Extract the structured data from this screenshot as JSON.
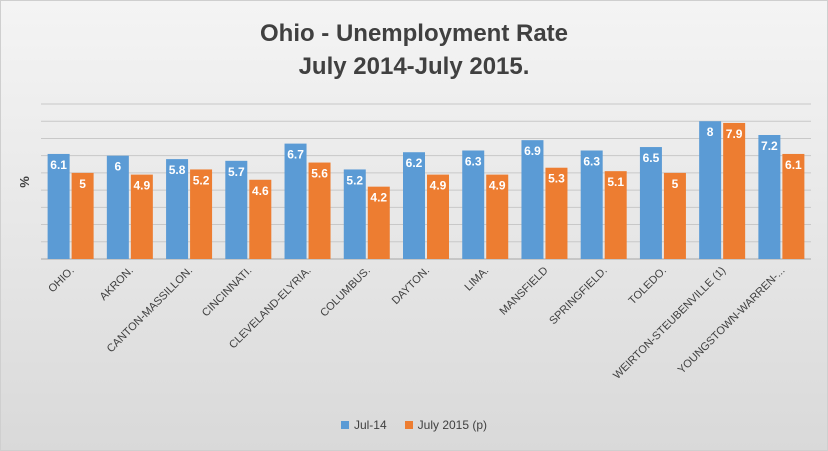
{
  "chart_data": {
    "type": "bar",
    "title": "Ohio - Unemployment Rate",
    "subtitle": "July 2014-July 2015.",
    "ylabel": "%",
    "xlabel": "",
    "ylim": [
      0,
      9
    ],
    "grid": true,
    "legend_position": "bottom",
    "categories": [
      "OHIO.",
      "AKRON.",
      "CANTON-MASSILLON.",
      "CINCINNATI.",
      "CLEVELAND-ELYRIA.",
      "COLUMBUS.",
      "DAYTON.",
      "LIMA.",
      "MANSFIELD",
      "SPRINGFIELD.",
      "TOLEDO.",
      "WEIRTON-STEUBENVILLE (1)",
      "YOUNGSTOWN-WARREN-..."
    ],
    "series": [
      {
        "name": "Jul-14",
        "color": "#5b9bd5",
        "values": [
          6.1,
          6,
          5.8,
          5.7,
          6.7,
          5.2,
          6.2,
          6.3,
          6.9,
          6.3,
          6.5,
          8,
          7.2
        ]
      },
      {
        "name": "July 2015 (p)",
        "color": "#ed7d31",
        "values": [
          5,
          4.9,
          5.2,
          4.6,
          5.6,
          4.2,
          4.9,
          4.9,
          5.3,
          5.1,
          5,
          7.9,
          6.1
        ]
      }
    ]
  }
}
